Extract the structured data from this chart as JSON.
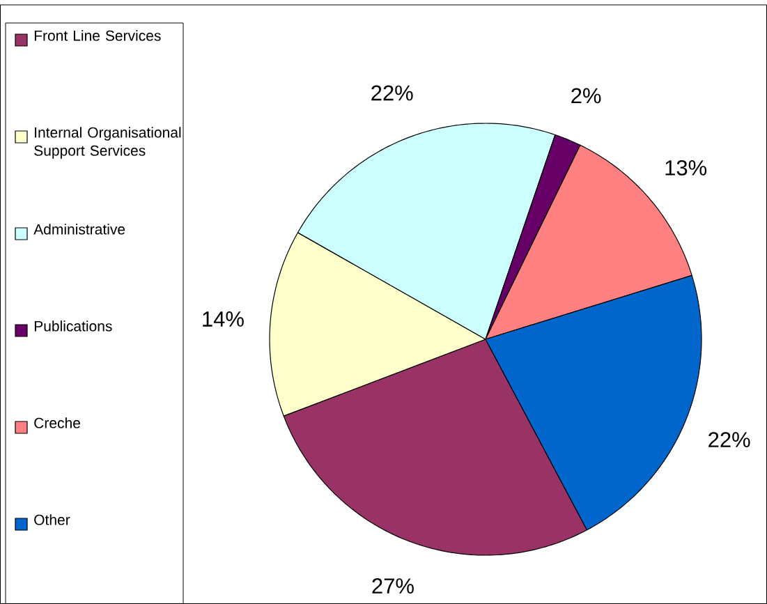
{
  "chart_data": {
    "type": "pie",
    "categories": [
      "Front Line Services",
      "Internal Organisational Support Services",
      "Administrative",
      "Publications",
      "Creche",
      "Other"
    ],
    "values": [
      27,
      14,
      22,
      2,
      13,
      22
    ],
    "value_labels": [
      "27%",
      "14%",
      "22%",
      "2%",
      "13%",
      "22%"
    ],
    "colors": [
      "#993366",
      "#ffffcc",
      "#ccffff",
      "#660066",
      "#ff8080",
      "#0066cc"
    ],
    "legend": "left"
  }
}
